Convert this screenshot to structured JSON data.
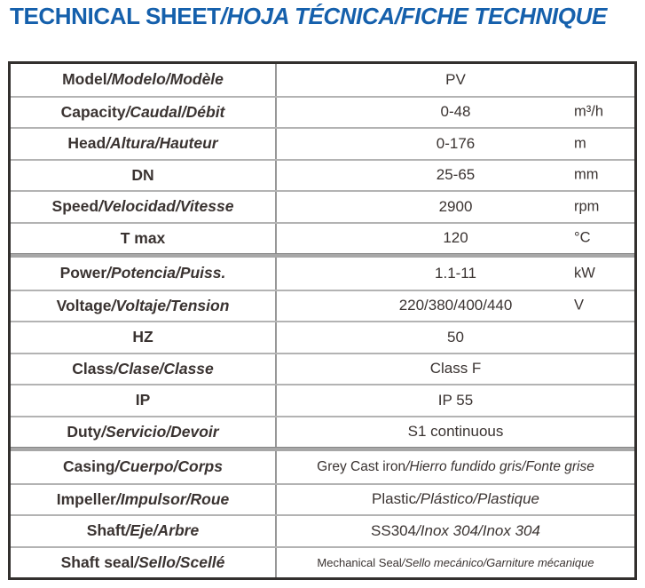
{
  "title": {
    "en": "TECHNICAL SHEET",
    "i18n": "/HOJA TÉCNICA/FICHE TECHNIQUE"
  },
  "colors": {
    "title_blue": "#1560ac",
    "text_dark": "#3a3331",
    "outer_border": "#33302e",
    "row_divider": "#b3b3b3",
    "section_divider": "#a7a7a7"
  },
  "table": {
    "rows": [
      {
        "label_en": "Model",
        "label_i18n": "/Modelo/Modèle",
        "value_en": "PV",
        "value_i18n": "",
        "unit": ""
      },
      {
        "label_en": "Capacity",
        "label_i18n": "/Caudal/Débit",
        "value_en": "0-48",
        "value_i18n": "",
        "unit": "m³/h"
      },
      {
        "label_en": "Head",
        "label_i18n": "/Altura/Hauteur",
        "value_en": "0-176",
        "value_i18n": "",
        "unit": "m"
      },
      {
        "label_en": "DN",
        "label_i18n": "",
        "value_en": "25-65",
        "value_i18n": "",
        "unit": "mm"
      },
      {
        "label_en": "Speed",
        "label_i18n": "/Velocidad/Vitesse",
        "value_en": "2900",
        "value_i18n": "",
        "unit": "rpm"
      },
      {
        "label_en": "T max",
        "label_i18n": "",
        "value_en": "120",
        "value_i18n": "",
        "unit": "°C"
      },
      {
        "label_en": "Power",
        "label_i18n": "/Potencia/Puiss.",
        "value_en": "1.1-11",
        "value_i18n": "",
        "unit": "kW"
      },
      {
        "label_en": "Voltage",
        "label_i18n": "/Voltaje/Tension",
        "value_en": "220/380/400/440",
        "value_i18n": "",
        "unit": "V"
      },
      {
        "label_en": "HZ",
        "label_i18n": "",
        "value_en": "50",
        "value_i18n": "",
        "unit": ""
      },
      {
        "label_en": "Class",
        "label_i18n": "/Clase/Classe",
        "value_en": "Class F",
        "value_i18n": "",
        "unit": ""
      },
      {
        "label_en": "IP",
        "label_i18n": "",
        "value_en": "IP 55",
        "value_i18n": "",
        "unit": ""
      },
      {
        "label_en": "Duty",
        "label_i18n": "/Servicio/Devoir",
        "value_en": "S1 continuous",
        "value_i18n": "",
        "unit": ""
      },
      {
        "label_en": "Casing",
        "label_i18n": "/Cuerpo/Corps",
        "value_en": "Grey Cast iron",
        "value_i18n": "/Hierro fundido gris/Fonte grise",
        "unit": ""
      },
      {
        "label_en": "Impeller",
        "label_i18n": "/Impulsor/Roue",
        "value_en": "Plastic",
        "value_i18n": "/Plástico/Plastique",
        "unit": ""
      },
      {
        "label_en": "Shaft",
        "label_i18n": "/Eje/Arbre",
        "value_en": "SS304",
        "value_i18n": "/Inox 304/Inox 304",
        "unit": ""
      },
      {
        "label_en": "Shaft seal",
        "label_i18n": "/Sello/Scellé",
        "value_en": "Mechanical Seal",
        "value_i18n": "/Sello mecánico/Garniture mécanique",
        "unit": ""
      }
    ]
  }
}
